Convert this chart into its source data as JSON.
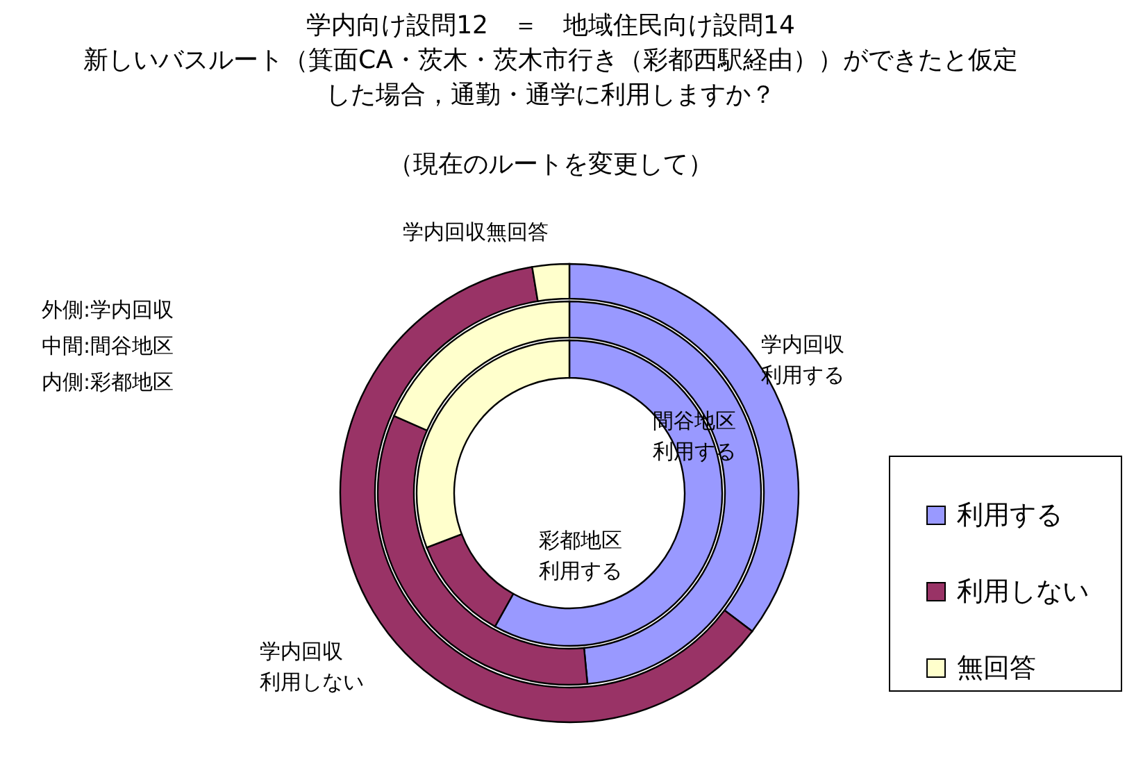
{
  "chart_data": {
    "type": "donut",
    "title": "学内向け設問12　＝　地域住民向け設問14",
    "subtitle": "新しいバスルート（箕面CA・茨木・茨木市行き（彩都西駅経由））ができたと仮定した場合，通勤・通学に利用しますか？",
    "categories": [
      "利用する",
      "利用しない",
      "無回答"
    ],
    "colors": [
      "#9999ff",
      "#993366",
      "#ffffcc"
    ],
    "series": [
      {
        "values": [
          35.3,
          62.1,
          2.6
        ]
      },
      {
        "values": [
          48.5,
          33.1,
          18.4
        ]
      },
      {
        "values": [
          58.1,
          11.1,
          30.8
        ]
      }
    ],
    "annotations": [
      "（現在のルートを変更して）",
      "外側:学内回収",
      "中間:間谷地区",
      "内側:彩都地区",
      "学内回収無回答",
      "学内回収利用する",
      "間谷地区利用する",
      "彩都地区利用する",
      "学内回収利用しない"
    ],
    "legend": "right"
  }
}
